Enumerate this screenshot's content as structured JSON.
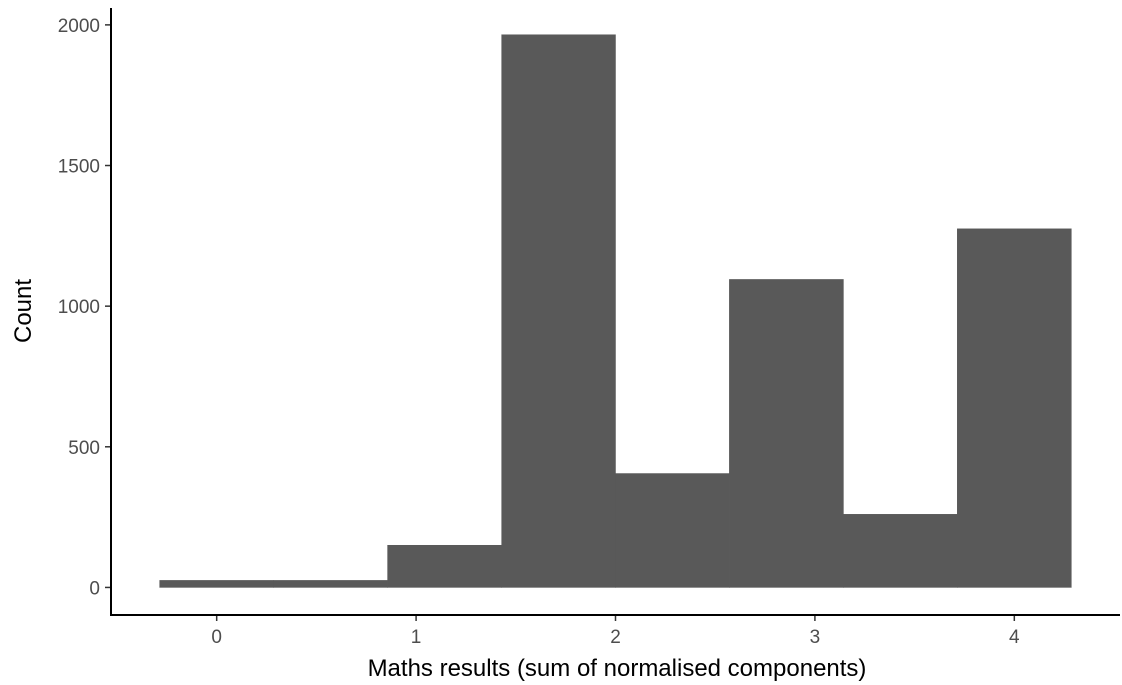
{
  "chart_data": {
    "type": "bar",
    "subtype": "histogram",
    "bins": [
      {
        "x0": -0.286,
        "x1": 0.286,
        "count": 25
      },
      {
        "x0": 0.286,
        "x1": 0.857,
        "count": 25
      },
      {
        "x0": 0.857,
        "x1": 1.429,
        "count": 150
      },
      {
        "x0": 1.429,
        "x1": 2.0,
        "count": 1965
      },
      {
        "x0": 2.0,
        "x1": 2.571,
        "count": 405
      },
      {
        "x0": 2.571,
        "x1": 3.143,
        "count": 1095
      },
      {
        "x0": 3.143,
        "x1": 3.714,
        "count": 260
      },
      {
        "x0": 3.714,
        "x1": 4.286,
        "count": 1275
      }
    ],
    "xlabel": "Maths results (sum of normalised components)",
    "ylabel": "Count",
    "xticks": [
      "0",
      "1",
      "2",
      "3",
      "4"
    ],
    "yticks": [
      "0",
      "500",
      "1000",
      "1500",
      "2000"
    ],
    "xlim": [
      -0.53,
      4.53
    ],
    "ylim": [
      -98,
      2060
    ],
    "bar_color": "#595959",
    "grid": false,
    "legend": "none"
  }
}
